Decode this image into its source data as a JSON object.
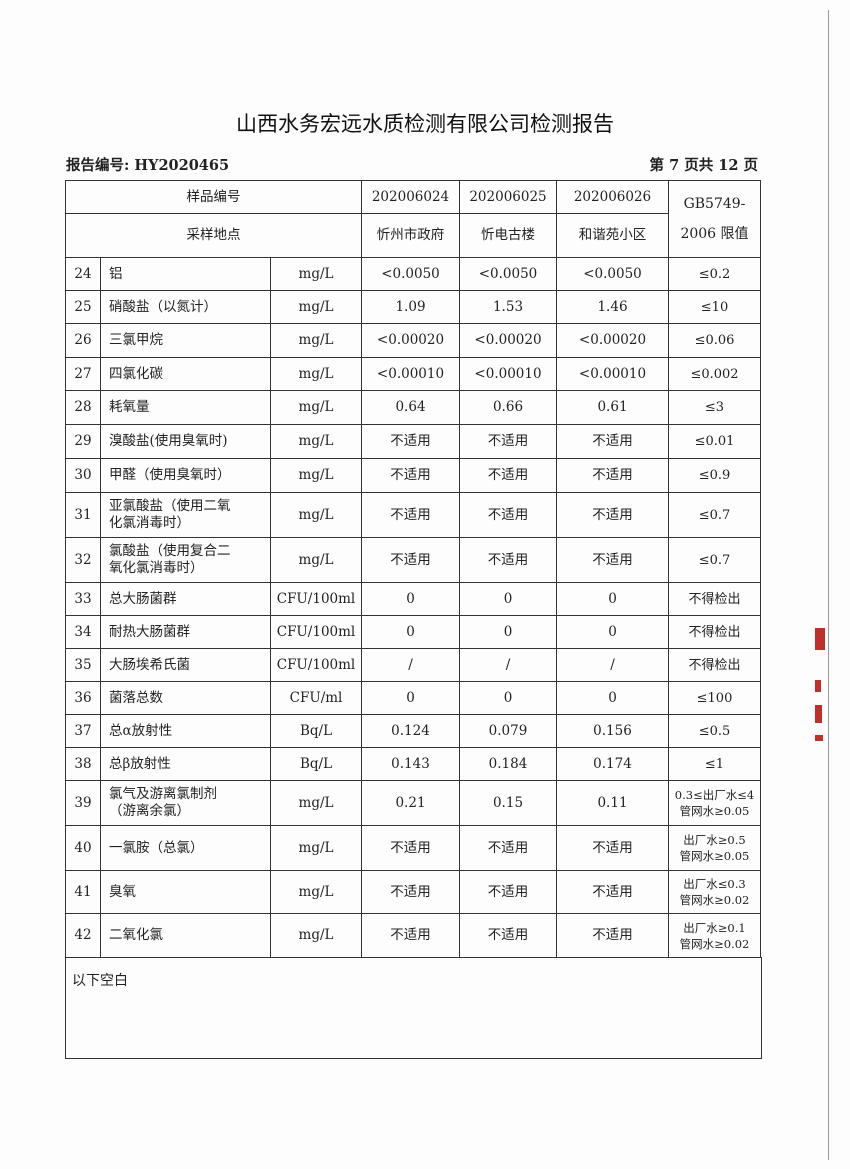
{
  "title": "山西水务宏远水质检测有限公司检测报告",
  "report_no": "报告编号: HY2020465",
  "page_info": "第 7 页共 12 页",
  "header": {
    "sample_no_label": "样品编号",
    "site_label": "采样地点",
    "sample_nos": [
      "202006024",
      "202006025",
      "202006026"
    ],
    "sites": [
      "忻州市政府",
      "忻电古楼",
      "和谐苑小区"
    ],
    "limit_label": [
      "GB5749-",
      "2006 限值"
    ]
  },
  "rows": [
    {
      "no": "24",
      "name": [
        "铝"
      ],
      "unit": "mg/L",
      "values": [
        "<0.0050",
        "<0.0050",
        "<0.0050"
      ],
      "limit": [
        "≤0.2"
      ]
    },
    {
      "no": "25",
      "name": [
        "硝酸盐（以氮计）"
      ],
      "unit": "mg/L",
      "values": [
        "1.09",
        "1.53",
        "1.46"
      ],
      "limit": [
        "≤10"
      ]
    },
    {
      "no": "26",
      "name": [
        "三氯甲烷"
      ],
      "unit": "mg/L",
      "values": [
        "<0.00020",
        "<0.00020",
        "<0.00020"
      ],
      "limit": [
        "≤0.06"
      ]
    },
    {
      "no": "27",
      "name": [
        "四氯化碳"
      ],
      "unit": "mg/L",
      "values": [
        "<0.00010",
        "<0.00010",
        "<0.00010"
      ],
      "limit": [
        "≤0.002"
      ]
    },
    {
      "no": "28",
      "name": [
        "耗氧量"
      ],
      "unit": "mg/L",
      "values": [
        "0.64",
        "0.66",
        "0.61"
      ],
      "limit": [
        "≤3"
      ]
    },
    {
      "no": "29",
      "name": [
        "溴酸盐(使用臭氧时)"
      ],
      "unit": "mg/L",
      "values": [
        "不适用",
        "不适用",
        "不适用"
      ],
      "limit": [
        "≤0.01"
      ]
    },
    {
      "no": "30",
      "name": [
        "甲醛（使用臭氧时）"
      ],
      "unit": "mg/L",
      "values": [
        "不适用",
        "不适用",
        "不适用"
      ],
      "limit": [
        "≤0.9"
      ]
    },
    {
      "no": "31",
      "name": [
        "亚氯酸盐（使用二氧",
        "化氯消毒时）"
      ],
      "unit": "mg/L",
      "values": [
        "不适用",
        "不适用",
        "不适用"
      ],
      "limit": [
        "≤0.7"
      ]
    },
    {
      "no": "32",
      "name": [
        "氯酸盐（使用复合二",
        "氧化氯消毒时）"
      ],
      "unit": "mg/L",
      "values": [
        "不适用",
        "不适用",
        "不适用"
      ],
      "limit": [
        "≤0.7"
      ]
    },
    {
      "no": "33",
      "name": [
        "总大肠菌群"
      ],
      "unit": "CFU/100ml",
      "values": [
        "0",
        "0",
        "0"
      ],
      "limit": [
        "不得检出"
      ]
    },
    {
      "no": "34",
      "name": [
        "耐热大肠菌群"
      ],
      "unit": "CFU/100ml",
      "values": [
        "0",
        "0",
        "0"
      ],
      "limit": [
        "不得检出"
      ]
    },
    {
      "no": "35",
      "name": [
        "大肠埃希氏菌"
      ],
      "unit": "CFU/100ml",
      "values": [
        "/",
        "/",
        "/"
      ],
      "limit": [
        "不得检出"
      ]
    },
    {
      "no": "36",
      "name": [
        "菌落总数"
      ],
      "unit": "CFU/ml",
      "values": [
        "0",
        "0",
        "0"
      ],
      "limit": [
        "≤100"
      ]
    },
    {
      "no": "37",
      "name": [
        "总α放射性"
      ],
      "unit": "Bq/L",
      "values": [
        "0.124",
        "0.079",
        "0.156"
      ],
      "limit": [
        "≤0.5"
      ]
    },
    {
      "no": "38",
      "name": [
        "总β放射性"
      ],
      "unit": "Bq/L",
      "values": [
        "0.143",
        "0.184",
        "0.174"
      ],
      "limit": [
        "≤1"
      ]
    },
    {
      "no": "39",
      "name": [
        "氯气及游离氯制剂",
        "（游离余氯）"
      ],
      "unit": "mg/L",
      "values": [
        "0.21",
        "0.15",
        "0.11"
      ],
      "limit": [
        "0.3≤出厂水≤4",
        "管网水≥0.05"
      ]
    },
    {
      "no": "40",
      "name": [
        "一氯胺（总氯）"
      ],
      "unit": "mg/L",
      "values": [
        "不适用",
        "不适用",
        "不适用"
      ],
      "limit": [
        "出厂水≥0.5",
        "管网水≥0.05"
      ]
    },
    {
      "no": "41",
      "name": [
        "臭氧"
      ],
      "unit": "mg/L",
      "values": [
        "不适用",
        "不适用",
        "不适用"
      ],
      "limit": [
        "出厂水≤0.3",
        "管网水≥0.02"
      ]
    },
    {
      "no": "42",
      "name": [
        "二氧化氯"
      ],
      "unit": "mg/L",
      "values": [
        "不适用",
        "不适用",
        "不适用"
      ],
      "limit": [
        "出厂水≥0.1",
        "管网水≥0.02"
      ]
    }
  ],
  "footer_note": "以下空白",
  "colors": {
    "stamp": "#c0302a",
    "ink": "#222222"
  }
}
